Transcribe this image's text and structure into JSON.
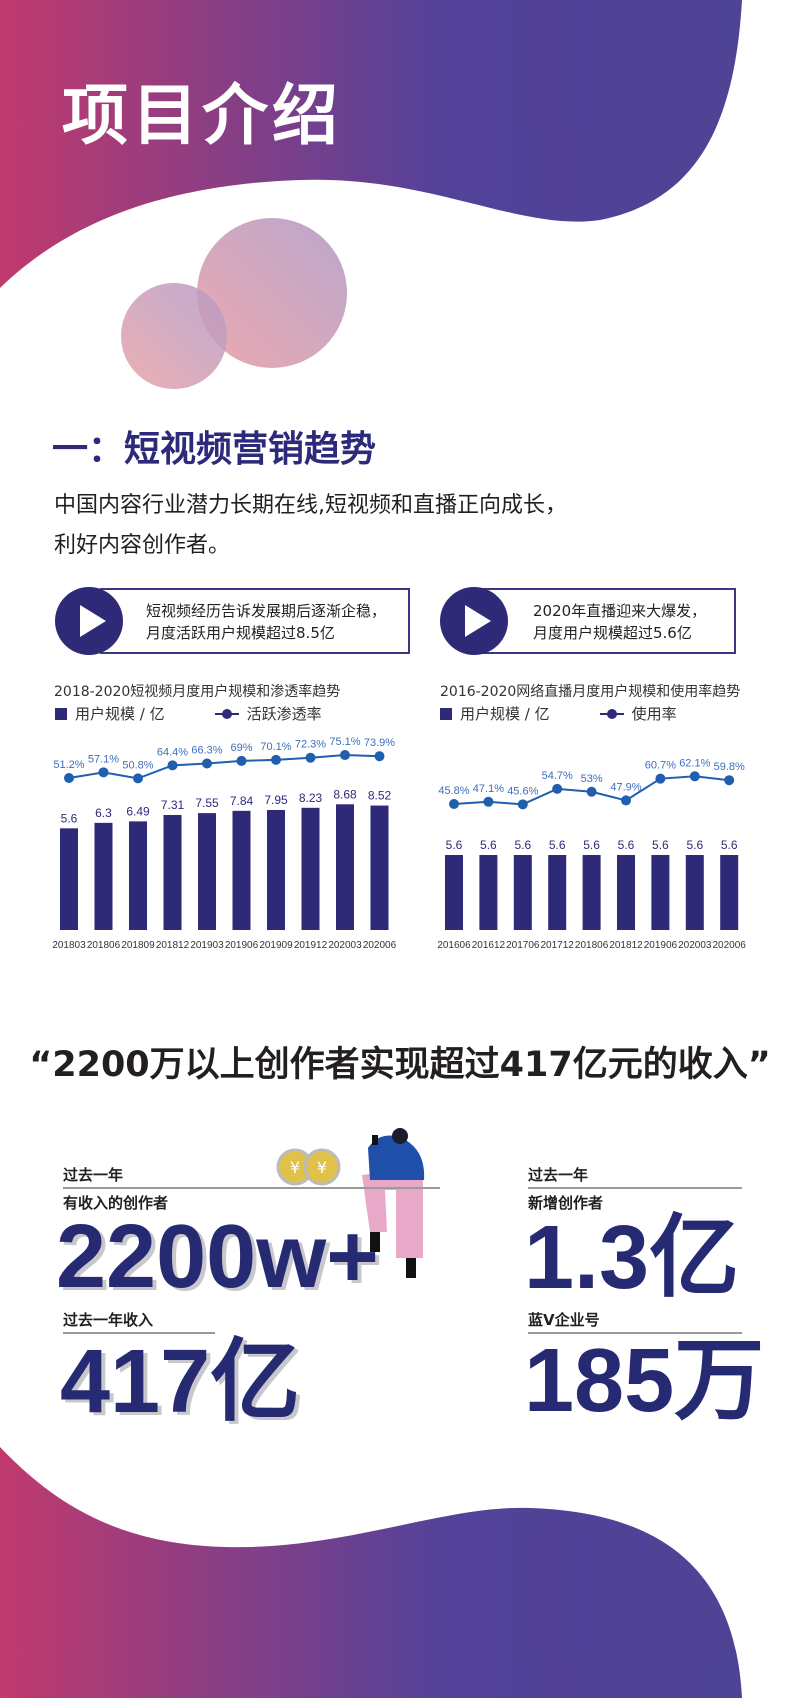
{
  "colors": {
    "gradient_start": "#c03a6e",
    "gradient_end": "#4f4395",
    "navy": "#2e2a78",
    "rate_line": "#1f5fae",
    "rate_label": "#3c6fbf"
  },
  "header": {
    "title": "项目介绍"
  },
  "section": {
    "heading": "一：短视频营销趋势",
    "paragraph_line1": "中国内容行业潜力长期在线,短视频和直播正向成长，",
    "paragraph_line2": "利好内容创作者。"
  },
  "callouts": [
    {
      "icon": "play-icon",
      "line1": "短视频经历告诉发展期后逐渐企稳，",
      "line2": "月度活跃用户规模超过8.5亿"
    },
    {
      "icon": "play-icon",
      "line1": "2020年直播迎来大爆发，",
      "line2": "月度用户规模超过5.6亿"
    }
  ],
  "chart_data": [
    {
      "type": "bar",
      "title": "2018-2020短视频月度用户规模和渗透率趋势",
      "legend": [
        "用户规模 / 亿",
        "活跃渗透率"
      ],
      "categories": [
        "201803",
        "201806",
        "201809",
        "201812",
        "201903",
        "201906",
        "201909",
        "201912",
        "202003",
        "202006"
      ],
      "series": [
        {
          "name": "用户规模 / 亿",
          "type": "bar",
          "values": [
            5.6,
            6.3,
            6.49,
            7.31,
            7.55,
            7.84,
            7.95,
            8.23,
            8.68,
            8.52
          ]
        },
        {
          "name": "活跃渗透率",
          "type": "line",
          "values": [
            51.2,
            57.1,
            50.8,
            64.4,
            66.3,
            69,
            70.1,
            72.3,
            75.1,
            73.9
          ],
          "labels": [
            "51.2%",
            "57.1%",
            "50.8%",
            "64.4%",
            "66.3%",
            "69%",
            "70.1%",
            "72.3%",
            "75.1%",
            "73.9%"
          ]
        }
      ]
    },
    {
      "type": "bar",
      "title": "2016-2020网络直播月度用户规模和使用率趋势",
      "legend": [
        "用户规模 / 亿",
        "使用率"
      ],
      "categories": [
        "201606",
        "201612",
        "201706",
        "201712",
        "201806",
        "201812",
        "201906",
        "202003",
        "202006"
      ],
      "series": [
        {
          "name": "用户规模 / 亿",
          "type": "bar",
          "values": [
            5.6,
            5.6,
            5.6,
            5.6,
            5.6,
            5.6,
            5.6,
            5.6,
            5.6
          ]
        },
        {
          "name": "使用率",
          "type": "line",
          "values": [
            45.8,
            47.1,
            45.6,
            54.7,
            53,
            47.9,
            60.7,
            62.1,
            59.8
          ],
          "labels": [
            "45.8%",
            "47.1%",
            "45.6%",
            "54.7%",
            "53%",
            "47.9%",
            "60.7%",
            "62.1%",
            "59.8%"
          ]
        }
      ]
    }
  ],
  "income": {
    "quote": "“2200万以上创作者实现超过417亿元的收入”",
    "stats": [
      {
        "label_top": "过去一年",
        "label": "有收入的创作者",
        "value": "2200w+"
      },
      {
        "label": "过去一年收入",
        "value": "417亿"
      },
      {
        "label_top": "过去一年",
        "label": "新增创作者",
        "value": "1.3亿"
      },
      {
        "label": "蓝V企业号",
        "value": "185万"
      }
    ]
  }
}
